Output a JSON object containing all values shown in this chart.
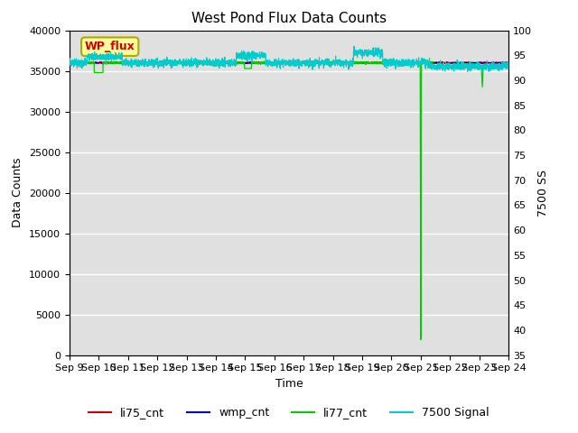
{
  "title": "West Pond Flux Data Counts",
  "xlabel": "Time",
  "ylabel_left": "Data Counts",
  "ylabel_right": "7500 SS",
  "ylim_left": [
    0,
    40000
  ],
  "ylim_right": [
    35,
    100
  ],
  "yticks_left": [
    0,
    5000,
    10000,
    15000,
    20000,
    25000,
    30000,
    35000,
    40000
  ],
  "yticks_right": [
    35,
    40,
    45,
    50,
    55,
    60,
    65,
    70,
    75,
    80,
    85,
    90,
    95,
    100
  ],
  "bg_color": "#e0e0e0",
  "annotation_text": "WP_flux",
  "annotation_bg": "#ffff99",
  "annotation_border": "#aaaa00",
  "annotation_text_color": "#cc0000",
  "li75_color": "#cc0000",
  "wmp_color": "#0000cc",
  "li77_color": "#00cc00",
  "signal_color": "#00cccc",
  "title_fontsize": 11,
  "axis_fontsize": 9,
  "tick_fontsize": 8
}
